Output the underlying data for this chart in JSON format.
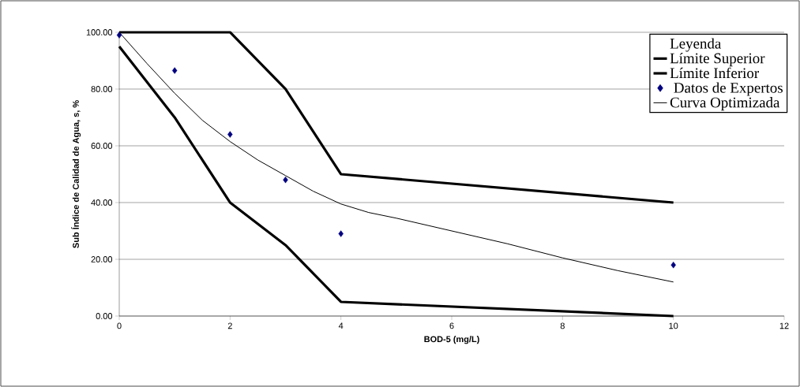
{
  "chart_data": {
    "type": "line",
    "xlabel": "BOD-5 (mg/L)",
    "ylabel": "Sub Índice de Calidad de Agua, s, %",
    "legend_title": "Leyenda",
    "xlim": [
      0,
      12
    ],
    "xticks": [
      0,
      2,
      4,
      6,
      8,
      10,
      12
    ],
    "ylim": [
      0,
      100
    ],
    "yticks": [
      {
        "value": 0,
        "label": "0.00"
      },
      {
        "value": 20,
        "label": "20.00"
      },
      {
        "value": 40,
        "label": "40.00"
      },
      {
        "value": 60,
        "label": "60.00"
      },
      {
        "value": 80,
        "label": "80.00"
      },
      {
        "value": 100,
        "label": "100.00"
      }
    ],
    "grid": "y",
    "legend": "top right",
    "series": [
      {
        "name": "Límite Superior",
        "color": "#000000",
        "x": [
          0,
          2,
          3,
          4,
          10
        ],
        "values": [
          100,
          100,
          80,
          50,
          40
        ]
      },
      {
        "name": "Límite Inferior",
        "color": "#000000",
        "x": [
          0,
          1,
          2,
          3,
          4,
          10
        ],
        "values": [
          95,
          70,
          40,
          25,
          5,
          0
        ]
      },
      {
        "name": " Datos de Expertos",
        "type": "scatter",
        "marker": "diamond",
        "color": "#000080",
        "x": [
          0,
          1,
          2,
          3,
          4,
          10
        ],
        "values": [
          99,
          86.5,
          64,
          48,
          29,
          18
        ]
      },
      {
        "name": "Curva Optimizada",
        "color": "#000000",
        "x": [
          0,
          0.5,
          1,
          1.5,
          2,
          2.5,
          3,
          3.5,
          4,
          4.5,
          5,
          6,
          7,
          8,
          9,
          10
        ],
        "values": [
          100,
          89,
          78.5,
          69,
          61.5,
          55,
          49.5,
          44,
          39.5,
          36.5,
          34.5,
          30,
          25.5,
          20.5,
          16,
          12
        ]
      }
    ]
  }
}
